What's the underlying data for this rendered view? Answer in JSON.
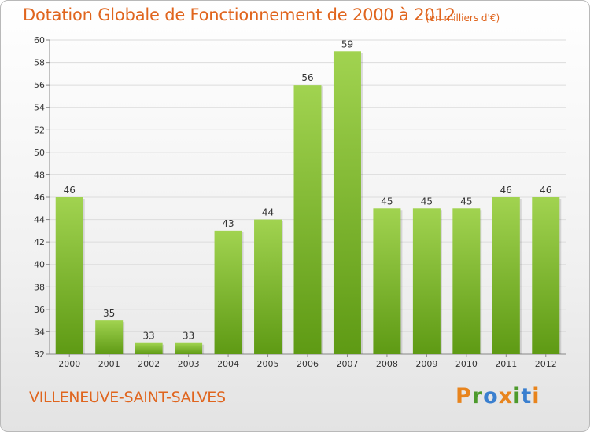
{
  "title": "Dotation Globale de Fonctionnement de 2000 à 2012",
  "unit_label": "(en milliers d'€)",
  "commune": "VILLENEUVE-SAINT-SALVES",
  "logo": {
    "text": "Proxiti",
    "letters": [
      "P",
      "r",
      "o",
      "x",
      "i",
      "t",
      "i"
    ],
    "colors": [
      "#e8841d",
      "#4d9a2c",
      "#3a7fcf",
      "#e8841d",
      "#4d9a2c",
      "#3a7fcf",
      "#e8841d"
    ]
  },
  "colors": {
    "accent": "#e0651e",
    "bar_top": "#a1d350",
    "bar_bottom": "#5e9a14"
  },
  "chart_data": {
    "type": "bar",
    "categories": [
      "2000",
      "2001",
      "2002",
      "2003",
      "2004",
      "2005",
      "2006",
      "2007",
      "2008",
      "2009",
      "2010",
      "2011",
      "2012"
    ],
    "values": [
      46,
      35,
      33,
      33,
      43,
      44,
      56,
      59,
      45,
      45,
      45,
      46,
      46
    ],
    "title": "Dotation Globale de Fonctionnement de 2000 à 2012",
    "ylim": [
      32,
      60
    ],
    "yticks": [
      32,
      34,
      36,
      38,
      40,
      42,
      44,
      46,
      48,
      50,
      52,
      54,
      56,
      58,
      60
    ],
    "grid": true,
    "legend": "none"
  }
}
